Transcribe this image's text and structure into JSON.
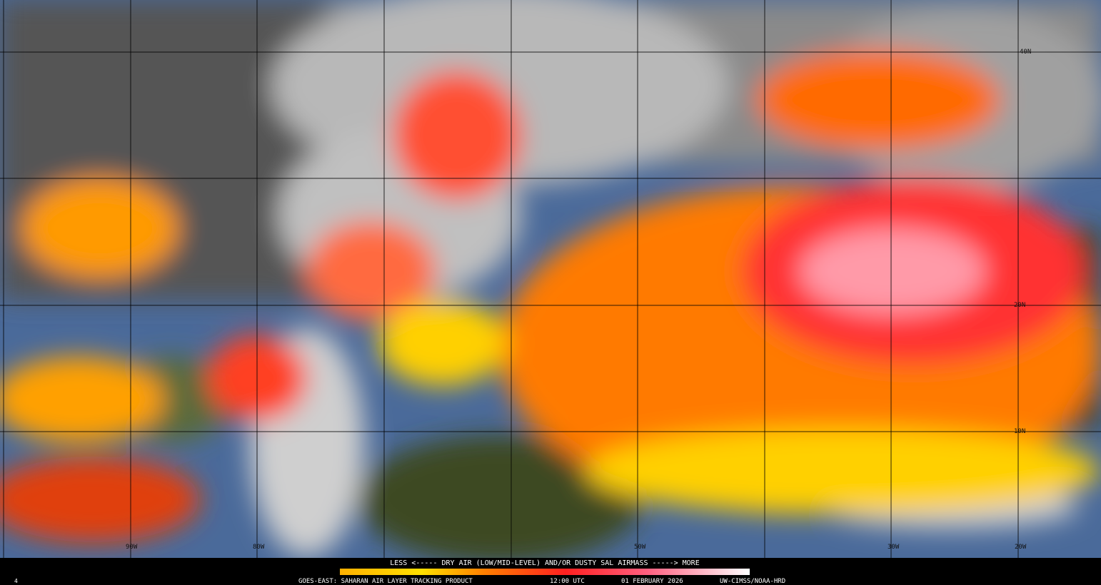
{
  "legend": {
    "text": "LESS <----- DRY AIR (LOW/MID-LEVEL) AND/OR DUSTY SAL AIRMASS -----> MORE"
  },
  "footer": {
    "corner": "4",
    "product": "GOES-EAST: SAHARAN AIR LAYER TRACKING PRODUCT",
    "time": "12:00 UTC",
    "date": "01 FEBRUARY 2026",
    "credit": "UW-CIMSS/NOAA-HRD"
  },
  "latitude_labels": [
    "40N",
    "20N",
    "10N"
  ],
  "longitude_labels": [
    "90W",
    "80W",
    "50W",
    "30W",
    "20W"
  ]
}
